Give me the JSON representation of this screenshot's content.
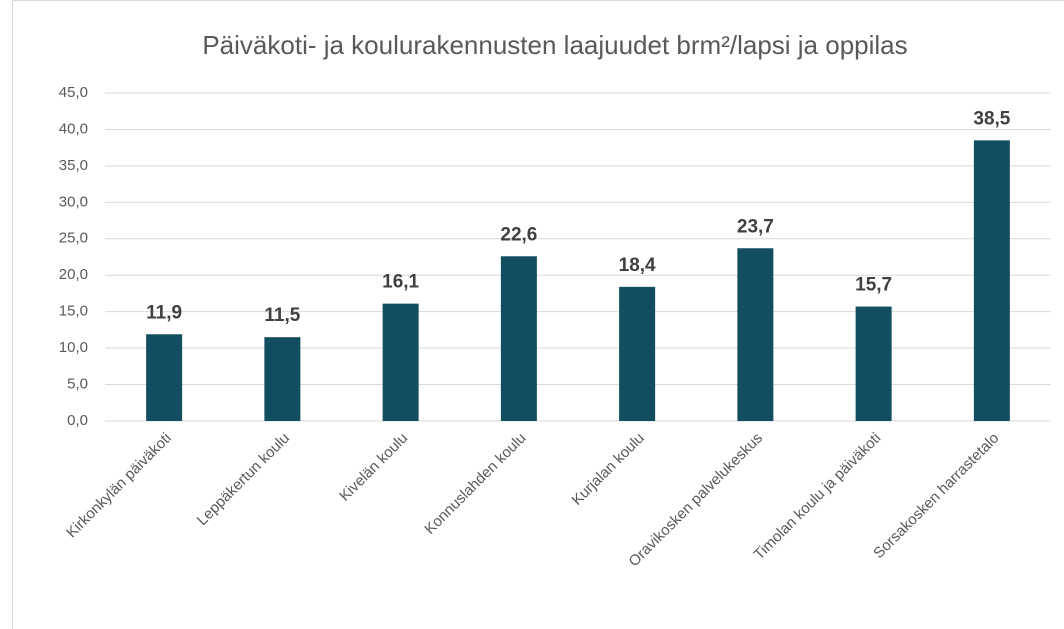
{
  "chart_data": {
    "type": "bar",
    "title": "Päiväkoti- ja koulurakennusten laajuudet brm²/lapsi ja oppilas",
    "categories": [
      "Kirkonkylän päiväkoti",
      "Leppäkertun koulu",
      "Kivelän koulu",
      "Konnuslahden koulu",
      "Kurjalan koulu",
      "Oravikosken palvelukeskus",
      "Timolan koulu ja päiväkoti",
      "Sorsakosken harrastetalo"
    ],
    "values": [
      11.9,
      11.5,
      16.1,
      22.6,
      18.4,
      23.7,
      15.7,
      38.5
    ],
    "value_labels": [
      "11,9",
      "11,5",
      "16,1",
      "22,6",
      "18,4",
      "23,7",
      "15,7",
      "38,5"
    ],
    "color": "#124e5f",
    "ylim": [
      0,
      45
    ],
    "yticks": [
      {
        "value": 0,
        "label": "0,0"
      },
      {
        "value": 5,
        "label": "5,0"
      },
      {
        "value": 10,
        "label": "10,0"
      },
      {
        "value": 15,
        "label": "15,0"
      },
      {
        "value": 20,
        "label": "20,0"
      },
      {
        "value": 25,
        "label": "25,0"
      },
      {
        "value": 30,
        "label": "30,0"
      },
      {
        "value": 35,
        "label": "35,0"
      },
      {
        "value": 40,
        "label": "40,0"
      },
      {
        "value": 45,
        "label": "45,0"
      }
    ],
    "grid": true
  }
}
